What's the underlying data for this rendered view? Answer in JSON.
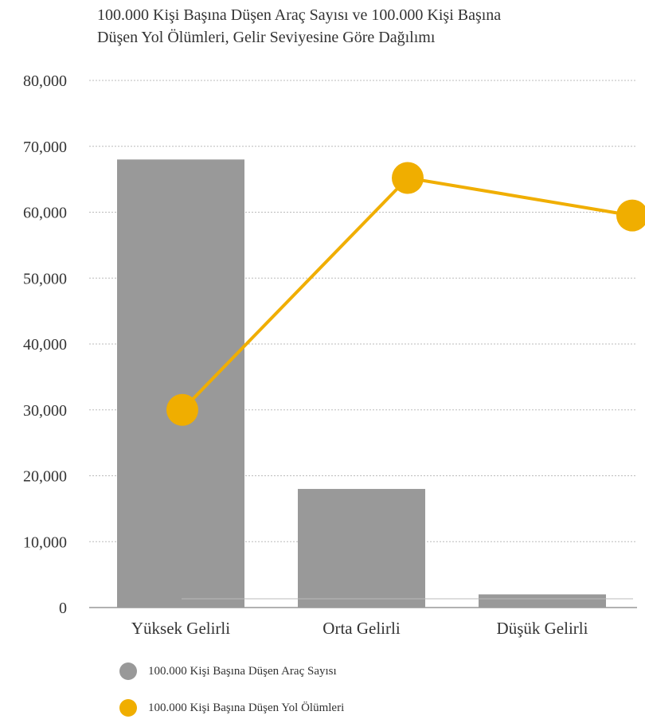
{
  "chart_data": {
    "type": "bar+line",
    "title": [
      "100.000 Kişi Başına Düşen Araç Sayısı ve 100.000 Kişi Başına",
      "Düşen Yol Ölümleri, Gelir Seviyesine Göre Dağılımı"
    ],
    "categories": [
      "Yüksek Gelirli",
      "Orta Gelirli",
      "Düşük Gelirli"
    ],
    "y_ticks": [
      "0",
      "10,000",
      "20,000",
      "30,000",
      "40,000",
      "50,000",
      "60,000",
      "70,000",
      "80,000"
    ],
    "ylim": [
      0,
      80000
    ],
    "grid": true,
    "legend_position": "bottom-left",
    "series": [
      {
        "name": "100.000 Kişi Başına Düşen Araç Sayısı",
        "kind": "bar",
        "color": "#999999",
        "values": [
          68000,
          18000,
          2000
        ]
      },
      {
        "name": "100.000 Kişi Başına Düşen Yol Ölümleri",
        "kind": "line",
        "color": "#F0AE00",
        "values": [
          30000,
          65200,
          59500
        ]
      }
    ]
  }
}
